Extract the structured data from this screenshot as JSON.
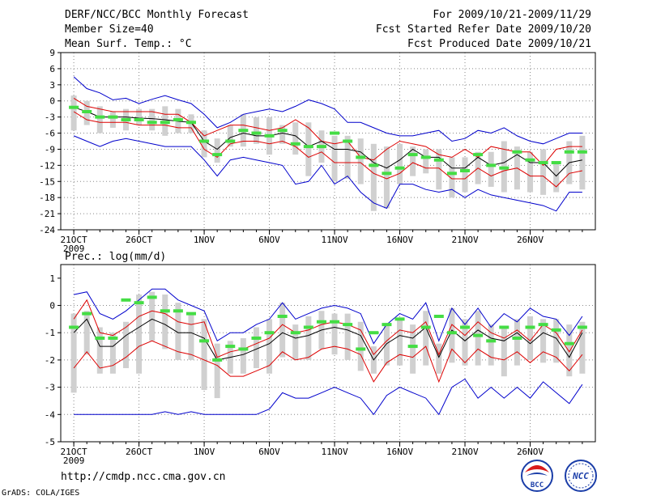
{
  "header": {
    "title": "DERF/NCC/BCC Monthly Forecast",
    "member_size": "Member Size=40",
    "variable": "Mean Surf. Temp.: °C",
    "period": "For 2009/10/21-2009/11/29",
    "fcst_started": "Fcst Started Refer Date 2009/10/20",
    "fcst_produced": "Fcst Produced Date 2009/10/21"
  },
  "footer": {
    "url": "http://cmdp.ncc.cma.gov.cn",
    "grads": "GrADS: COLA/IGES",
    "logo_left_text": "BCC",
    "logo_right_text": "NCC"
  },
  "colors": {
    "envelope": "#0000cc",
    "spread": "#dd0000",
    "mean": "#000000",
    "observed": "#44dd44",
    "range_bar": "#d0d0d0",
    "grid": "#888888"
  },
  "chart_data": [
    {
      "type": "line",
      "title": "Mean Surf. Temp.: °C",
      "x": [
        1,
        2,
        3,
        4,
        5,
        6,
        7,
        8,
        9,
        10,
        11,
        12,
        13,
        14,
        15,
        16,
        17,
        18,
        19,
        20,
        21,
        22,
        23,
        24,
        25,
        26,
        27,
        28,
        29,
        30,
        31,
        32,
        33,
        34,
        35,
        36,
        37,
        38,
        39,
        40
      ],
      "xlim": [
        0,
        41
      ],
      "ylim": [
        -24,
        9
      ],
      "yticks": [
        9,
        6,
        3,
        0,
        -3,
        -6,
        -9,
        -12,
        -15,
        -18,
        -21,
        -24
      ],
      "ytick_labels": [
        "9",
        "6",
        "3",
        "0",
        "-3",
        "-6",
        "-9",
        "-12",
        "-15",
        "-18",
        "-21",
        "-24"
      ],
      "xtick_positions": [
        1,
        6,
        11,
        16,
        21,
        26,
        31,
        36
      ],
      "xtick_labels": [
        "21OCT",
        "26OCT",
        "1NOV",
        "6NOV",
        "11NOV",
        "16NOV",
        "21NOV",
        "26NOV"
      ],
      "year_label": "2009",
      "grid": true,
      "series": [
        {
          "name": "upper envelope",
          "values": [
            4.5,
            2.3,
            1.5,
            0.2,
            0.5,
            -0.5,
            0.3,
            1.0,
            0.2,
            -0.5,
            -2.5,
            -5.0,
            -4.0,
            -2.5,
            -2.0,
            -1.5,
            -2.0,
            -1.0,
            0.2,
            -0.5,
            -1.5,
            -4.0,
            -4.0,
            -5.0,
            -6.0,
            -6.5,
            -6.5,
            -6.0,
            -5.5,
            -7.5,
            -7.0,
            -5.5,
            -6.0,
            -5.0,
            -6.5,
            -7.5,
            -8.0,
            -7.0,
            -6.0,
            -6.0
          ]
        },
        {
          "name": "upper spread",
          "values": [
            0.5,
            -1.0,
            -1.5,
            -2.0,
            -2.0,
            -2.0,
            -2.0,
            -2.5,
            -2.5,
            -4.0,
            -6.5,
            -5.5,
            -4.5,
            -4.5,
            -5.0,
            -5.5,
            -5.0,
            -3.5,
            -5.0,
            -7.5,
            -8.0,
            -7.5,
            -10.5,
            -11.0,
            -9.0,
            -7.5,
            -8.0,
            -8.5,
            -10.0,
            -10.5,
            -9.0,
            -10.5,
            -8.5,
            -9.0,
            -9.5,
            -9.5,
            -12.0,
            -9.0,
            -8.5,
            -8.5
          ]
        },
        {
          "name": "mean",
          "values": [
            -1.2,
            -2.0,
            -3.0,
            -3.0,
            -3.0,
            -3.2,
            -3.3,
            -3.5,
            -3.8,
            -4.0,
            -7.5,
            -9.0,
            -6.8,
            -6.0,
            -6.5,
            -6.5,
            -6.0,
            -6.5,
            -8.5,
            -7.5,
            -9.0,
            -9.0,
            -9.5,
            -11.5,
            -12.5,
            -11.0,
            -9.0,
            -10.5,
            -10.5,
            -12.5,
            -12.5,
            -10.5,
            -12.0,
            -11.5,
            -10.0,
            -11.5,
            -11.5,
            -14.0,
            -11.5,
            -11.0
          ]
        },
        {
          "name": "lower spread",
          "values": [
            -2.0,
            -3.5,
            -4.0,
            -4.0,
            -4.0,
            -4.5,
            -4.5,
            -4.5,
            -5.0,
            -5.0,
            -9.0,
            -10.5,
            -8.0,
            -7.5,
            -7.5,
            -8.0,
            -7.5,
            -8.5,
            -10.5,
            -9.5,
            -11.5,
            -11.5,
            -11.5,
            -13.5,
            -14.5,
            -13.5,
            -11.5,
            -12.5,
            -12.5,
            -14.5,
            -14.5,
            -12.5,
            -14.0,
            -13.0,
            -12.5,
            -14.0,
            -14.0,
            -16.0,
            -13.5,
            -13.0
          ]
        },
        {
          "name": "lower envelope",
          "values": [
            -6.5,
            -7.5,
            -8.5,
            -7.5,
            -7.0,
            -7.5,
            -8.0,
            -8.5,
            -8.5,
            -8.5,
            -11.0,
            -14.0,
            -11.0,
            -10.5,
            -11.0,
            -11.5,
            -12.0,
            -15.5,
            -15.0,
            -12.0,
            -15.5,
            -14.0,
            -17.0,
            -19.0,
            -20.0,
            -15.5,
            -15.5,
            -16.5,
            -17.0,
            -16.5,
            -18.0,
            -16.5,
            -17.5,
            -18.0,
            -18.5,
            -19.0,
            -19.5,
            -20.5,
            -17.0,
            -17.0
          ]
        }
      ],
      "observed": [
        -1.2,
        -2.0,
        -3.0,
        -3.0,
        -3.5,
        -3.5,
        -4.0,
        -4.0,
        -3.5,
        -4.0,
        -7.5,
        -10.0,
        -7.5,
        -5.5,
        -6.0,
        -6.5,
        -5.5,
        -8.0,
        -8.5,
        -8.5,
        -6.0,
        -7.5,
        -10.5,
        -12.0,
        -13.5,
        -12.5,
        -10.0,
        -10.5,
        -11.0,
        -13.5,
        -13.0,
        -10.0,
        -12.0,
        -12.5,
        -9.5,
        -11.0,
        -11.5,
        -11.5,
        -9.5,
        -9.5
      ],
      "range_bars": [
        [
          -5.5,
          1.0
        ],
        [
          -4.5,
          0.0
        ],
        [
          -6.0,
          -1.0
        ],
        [
          -5.0,
          -2.0
        ],
        [
          -5.5,
          -1.5
        ],
        [
          -4.5,
          -1.5
        ],
        [
          -5.5,
          -1.5
        ],
        [
          -6.5,
          -1.0
        ],
        [
          -6.0,
          -1.5
        ],
        [
          -6.0,
          -2.5
        ],
        [
          -10.5,
          -5.5
        ],
        [
          -11.5,
          -7.0
        ],
        [
          -8.5,
          -4.5
        ],
        [
          -8.5,
          -2.5
        ],
        [
          -8.0,
          -3.0
        ],
        [
          -10.0,
          -3.0
        ],
        [
          -8.0,
          -4.5
        ],
        [
          -10.0,
          -4.0
        ],
        [
          -14.0,
          -4.0
        ],
        [
          -11.5,
          -5.5
        ],
        [
          -15.0,
          -6.5
        ],
        [
          -14.5,
          -6.5
        ],
        [
          -15.5,
          -7.0
        ],
        [
          -20.5,
          -8.0
        ],
        [
          -20.0,
          -8.5
        ],
        [
          -15.5,
          -8.0
        ],
        [
          -14.0,
          -8.5
        ],
        [
          -13.5,
          -9.0
        ],
        [
          -16.5,
          -9.0
        ],
        [
          -18.0,
          -10.5
        ],
        [
          -17.0,
          -10.5
        ],
        [
          -15.5,
          -9.5
        ],
        [
          -16.0,
          -9.5
        ],
        [
          -17.0,
          -7.5
        ],
        [
          -16.5,
          -8.5
        ],
        [
          -17.0,
          -9.5
        ],
        [
          -17.5,
          -9.0
        ],
        [
          -17.0,
          -11.5
        ],
        [
          -15.5,
          -7.5
        ],
        [
          -16.5,
          -6.5
        ]
      ]
    },
    {
      "type": "line",
      "title": "Prec.: log(mm/d)",
      "x": [
        1,
        2,
        3,
        4,
        5,
        6,
        7,
        8,
        9,
        10,
        11,
        12,
        13,
        14,
        15,
        16,
        17,
        18,
        19,
        20,
        21,
        22,
        23,
        24,
        25,
        26,
        27,
        28,
        29,
        30,
        31,
        32,
        33,
        34,
        35,
        36,
        37,
        38,
        39,
        40
      ],
      "xlim": [
        0,
        41
      ],
      "ylim": [
        -5,
        1.5
      ],
      "yticks": [
        1,
        0,
        -1,
        -2,
        -3,
        -4,
        -5
      ],
      "ytick_labels": [
        "1",
        "0",
        "-1",
        "-2",
        "-3",
        "-4",
        "-5"
      ],
      "xtick_positions": [
        1,
        6,
        11,
        16,
        21,
        26,
        31,
        36
      ],
      "xtick_labels": [
        "21OCT",
        "26OCT",
        "1NOV",
        "6NOV",
        "11NOV",
        "16NOV",
        "21NOV",
        "26NOV"
      ],
      "year_label": "2009",
      "grid": true,
      "series": [
        {
          "name": "upper envelope",
          "values": [
            0.4,
            0.5,
            -0.3,
            -0.5,
            -0.2,
            0.2,
            0.6,
            0.6,
            0.2,
            0.0,
            -0.2,
            -1.3,
            -1.0,
            -1.0,
            -0.7,
            -0.5,
            0.1,
            -0.5,
            -0.3,
            -0.1,
            0.0,
            -0.1,
            -0.3,
            -1.4,
            -0.7,
            -0.3,
            -0.5,
            0.1,
            -1.3,
            -0.1,
            -0.7,
            -0.1,
            -0.8,
            -0.3,
            -0.6,
            -0.1,
            -0.4,
            -0.5,
            -1.1,
            -0.4
          ]
        },
        {
          "name": "upper spread",
          "values": [
            -0.5,
            0.2,
            -1.0,
            -1.1,
            -0.8,
            -0.4,
            -0.2,
            -0.3,
            -0.6,
            -0.7,
            -0.6,
            -1.9,
            -1.7,
            -1.6,
            -1.4,
            -1.2,
            -0.7,
            -1.0,
            -0.9,
            -0.7,
            -0.6,
            -0.7,
            -0.9,
            -1.8,
            -1.3,
            -0.9,
            -1.0,
            -0.6,
            -1.8,
            -0.7,
            -1.1,
            -0.6,
            -1.0,
            -1.2,
            -0.9,
            -1.3,
            -0.7,
            -1.0,
            -1.7,
            -0.9
          ]
        },
        {
          "name": "mean",
          "values": [
            -1.0,
            -0.5,
            -1.5,
            -1.5,
            -1.1,
            -0.8,
            -0.5,
            -0.7,
            -1.0,
            -1.0,
            -1.2,
            -2.0,
            -1.9,
            -1.8,
            -1.6,
            -1.4,
            -1.0,
            -1.2,
            -1.1,
            -0.9,
            -0.8,
            -0.9,
            -1.1,
            -2.0,
            -1.4,
            -1.1,
            -1.2,
            -0.8,
            -1.9,
            -0.9,
            -1.3,
            -0.9,
            -1.2,
            -1.3,
            -1.0,
            -1.4,
            -1.0,
            -1.2,
            -1.9,
            -1.0
          ]
        },
        {
          "name": "lower spread",
          "values": [
            -2.3,
            -1.7,
            -2.3,
            -2.2,
            -1.9,
            -1.5,
            -1.3,
            -1.5,
            -1.7,
            -1.8,
            -2.0,
            -2.2,
            -2.6,
            -2.6,
            -2.4,
            -2.2,
            -1.7,
            -2.0,
            -1.9,
            -1.6,
            -1.5,
            -1.6,
            -1.8,
            -2.8,
            -2.1,
            -1.8,
            -1.9,
            -1.5,
            -2.8,
            -1.6,
            -2.1,
            -1.6,
            -1.9,
            -2.0,
            -1.7,
            -2.1,
            -1.7,
            -1.9,
            -2.4,
            -1.8
          ]
        },
        {
          "name": "lower envelope",
          "values": [
            -4.0,
            -4.0,
            -4.0,
            -4.0,
            -4.0,
            -4.0,
            -4.0,
            -3.9,
            -4.0,
            -3.9,
            -4.0,
            -4.0,
            -4.0,
            -4.0,
            -4.0,
            -3.8,
            -3.2,
            -3.4,
            -3.4,
            -3.2,
            -3.0,
            -3.2,
            -3.4,
            -4.0,
            -3.3,
            -3.0,
            -3.2,
            -3.4,
            -4.0,
            -3.0,
            -2.7,
            -3.4,
            -3.0,
            -3.4,
            -3.0,
            -3.4,
            -2.8,
            -3.2,
            -3.6,
            -2.9
          ]
        }
      ],
      "observed": [
        -0.8,
        -0.3,
        -1.2,
        -1.2,
        0.2,
        0.1,
        0.3,
        -0.2,
        -0.2,
        -0.3,
        -1.3,
        -2.0,
        -1.5,
        -1.6,
        -1.2,
        -1.0,
        -0.4,
        -1.0,
        -0.8,
        -0.6,
        -0.6,
        -0.7,
        -1.6,
        -1.0,
        -0.7,
        -0.5,
        -1.5,
        -0.8,
        -0.4,
        -1.0,
        -0.8,
        -1.1,
        -1.3,
        -0.8,
        -1.2,
        -0.8,
        -0.7,
        -0.9,
        -1.4,
        -0.8
      ],
      "range_bars": [
        [
          -3.2,
          -0.3
        ],
        [
          -1.8,
          -0.2
        ],
        [
          -2.5,
          -0.8
        ],
        [
          -2.5,
          -1.0
        ],
        [
          -2.3,
          -0.6
        ],
        [
          -2.5,
          0.4
        ],
        [
          -1.3,
          0.5
        ],
        [
          -1.6,
          0.4
        ],
        [
          -2.0,
          0.1
        ],
        [
          -2.0,
          -0.3
        ],
        [
          -3.1,
          -0.5
        ],
        [
          -3.4,
          -1.4
        ],
        [
          -2.5,
          -1.3
        ],
        [
          -2.5,
          -1.2
        ],
        [
          -2.3,
          -0.8
        ],
        [
          -2.5,
          -0.5
        ],
        [
          -1.9,
          0.1
        ],
        [
          -2.0,
          -0.7
        ],
        [
          -2.0,
          -0.4
        ],
        [
          -1.6,
          -0.2
        ],
        [
          -1.8,
          -0.3
        ],
        [
          -2.0,
          -0.3
        ],
        [
          -2.4,
          -0.6
        ],
        [
          -2.5,
          -1.5
        ],
        [
          -2.2,
          -0.7
        ],
        [
          -2.2,
          -0.5
        ],
        [
          -2.5,
          -0.7
        ],
        [
          -2.2,
          -0.2
        ],
        [
          -2.5,
          -1.4
        ],
        [
          -2.1,
          -0.1
        ],
        [
          -2.2,
          -0.5
        ],
        [
          -2.2,
          -0.2
        ],
        [
          -2.2,
          -0.7
        ],
        [
          -2.6,
          -0.8
        ],
        [
          -2.2,
          -0.5
        ],
        [
          -2.0,
          -0.4
        ],
        [
          -2.1,
          -0.5
        ],
        [
          -2.1,
          -0.5
        ],
        [
          -2.6,
          -0.7
        ],
        [
          -2.5,
          -0.6
        ]
      ]
    }
  ]
}
